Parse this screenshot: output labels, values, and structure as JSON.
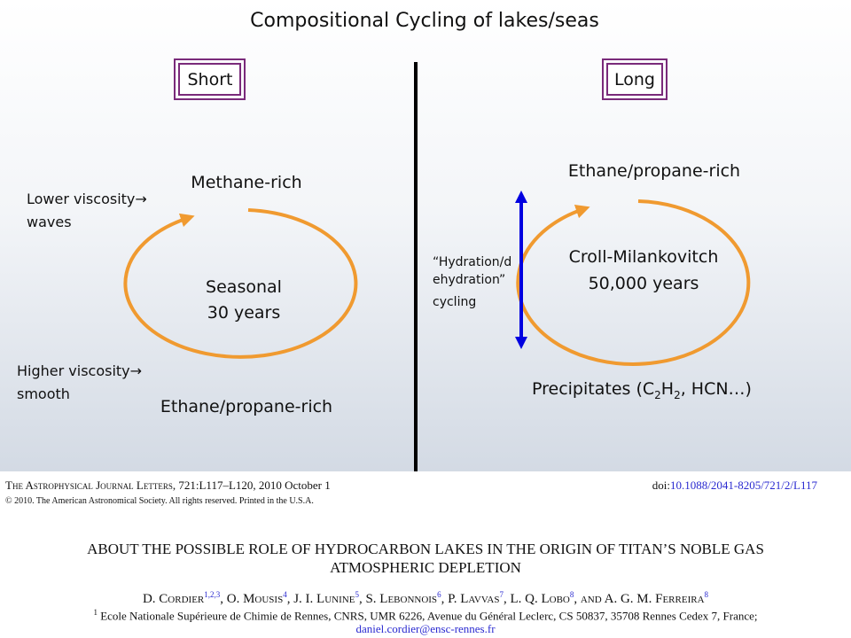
{
  "slide": {
    "title": "Compositional Cycling of lakes/seas",
    "left": {
      "label": "Short",
      "top": "Methane-rich",
      "center": [
        "Seasonal",
        "30 years"
      ],
      "bottom": "Ethane/propane-rich",
      "note_top": [
        "Lower viscosity→",
        "waves"
      ],
      "note_bottom": [
        "Higher viscosity→",
        "smooth"
      ]
    },
    "right": {
      "label": "Long",
      "top": "Ethane/propane-rich",
      "center": [
        "Croll-Milankovitch",
        "50,000 years"
      ],
      "side_note": [
        "“Hydration/d",
        "ehydration”",
        "cycling"
      ],
      "bottom": [
        "Precipitates (C",
        "2",
        "H",
        "2",
        ", HCN…)"
      ]
    }
  },
  "paper": {
    "journal": "The Astrophysical Journal Letters",
    "citation": ", 721:L117–L120, 2010 October 1",
    "doi_label": "doi:",
    "doi": "10.1088/2041-8205/721/2/L117",
    "copyright": "© 2010. The American Astronomical Society. All rights reserved. Printed in the U.S.A.",
    "title": [
      "ABOUT THE POSSIBLE ROLE OF HYDROCARBON LAKES IN THE ORIGIN OF TITAN’S NOBLE GAS",
      "ATMOSPHERIC DEPLETION"
    ],
    "authors": [
      {
        "name": "D. Cordier",
        "sup": "1,2,3"
      },
      {
        "name": ", O. Mousis",
        "sup": "4"
      },
      {
        "name": ", J. I. Lunine",
        "sup": "5"
      },
      {
        "name": ", S. Lebonnois",
        "sup": "6"
      },
      {
        "name": ", P. Lavvas",
        "sup": "7"
      },
      {
        "name": ", L. Q. Lobo",
        "sup": "8"
      },
      {
        "name": ", and A. G. M. Ferreira",
        "sup": "8"
      }
    ],
    "affiliation_sup": "1",
    "affiliation": "Ecole Nationale Supérieure de Chimie de Rennes, CNRS, UMR 6226, Avenue du Général Leclerc, CS 50837, 35708 Rennes Cedex 7, France;",
    "email": "daniel.cordier@ensc-rennes.fr"
  }
}
